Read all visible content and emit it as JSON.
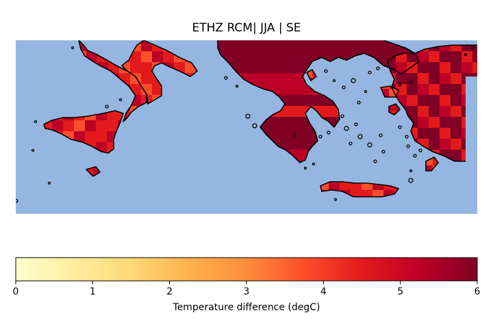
{
  "title": "ETHZ RCM| JJA | SE",
  "colors": {
    "sea": "#95b6e1",
    "coast": "#000000",
    "cmap_name": "YlOrRd",
    "cmap": [
      "#ffffcc",
      "#ffeda0",
      "#fed976",
      "#feb24c",
      "#fd8d3c",
      "#fc4e2a",
      "#e31a1c",
      "#bd0026",
      "#800026"
    ]
  },
  "colorbar": {
    "label": "Temperature difference (degC)",
    "min": 0,
    "max": 6,
    "ticks": [
      {
        "value": 0,
        "label": "0"
      },
      {
        "value": 1,
        "label": "1"
      },
      {
        "value": 2,
        "label": "2"
      },
      {
        "value": 3,
        "label": "3"
      },
      {
        "value": 4,
        "label": "4"
      },
      {
        "value": 5,
        "label": "5"
      },
      {
        "value": 6,
        "label": "6"
      }
    ]
  }
}
